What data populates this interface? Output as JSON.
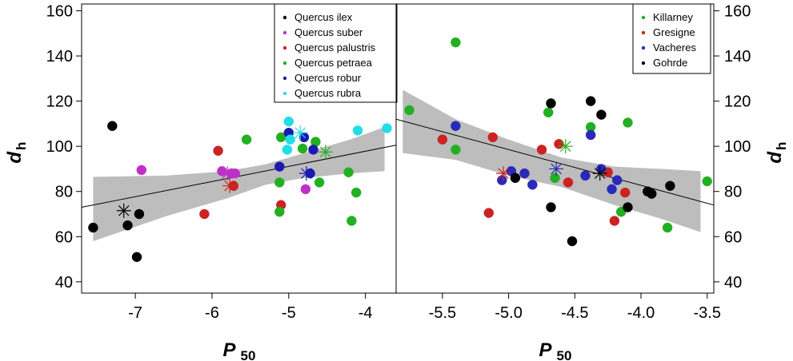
{
  "chart_data": [
    {
      "type": "scatter",
      "panel": "left",
      "xlabel_main": "P",
      "xlabel_sub": "50",
      "ylabel_main": "d",
      "ylabel_sub": "h",
      "xlim": [
        -7.7,
        -3.6
      ],
      "ylim": [
        35,
        163
      ],
      "xticks": [
        -7,
        -6,
        -5,
        -4
      ],
      "xtick_labels": [
        "-7",
        "-6",
        "-5",
        "-4"
      ],
      "yticks": [
        40,
        60,
        80,
        100,
        120,
        140,
        160
      ],
      "ytick_labels": [
        "40",
        "60",
        "80",
        "100",
        "120",
        "140",
        "160"
      ],
      "legend_position": "top-right",
      "regression": {
        "line": [
          [
            -7.7,
            73
          ],
          [
            -3.6,
            100.5
          ]
        ],
        "band_upper": [
          [
            -7.55,
            86.5
          ],
          [
            -6.6,
            87
          ],
          [
            -5.8,
            89
          ],
          [
            -5.3,
            92
          ],
          [
            -4.8,
            97
          ],
          [
            -4.2,
            103
          ],
          [
            -3.75,
            108.5
          ]
        ],
        "band_lower": [
          [
            -7.55,
            58
          ],
          [
            -6.6,
            69
          ],
          [
            -5.8,
            77
          ],
          [
            -5.3,
            83
          ],
          [
            -4.8,
            86
          ],
          [
            -4.2,
            88
          ],
          [
            -3.75,
            89
          ]
        ]
      },
      "series": [
        {
          "name": "Quercus ilex",
          "color": "#000000",
          "points": [
            [
              -7.55,
              64
            ],
            [
              -7.3,
              109
            ],
            [
              -7.1,
              65
            ],
            [
              -6.98,
              51
            ],
            [
              -6.95,
              70
            ]
          ],
          "mean": [
            -7.15,
            71.5
          ]
        },
        {
          "name": "Quercus suber",
          "color": "#c030c8",
          "points": [
            [
              -6.92,
              89.5
            ],
            [
              -5.87,
              89
            ],
            [
              -5.75,
              88
            ],
            [
              -5.7,
              88
            ],
            [
              -4.78,
              81
            ]
          ],
          "mean": [
            -5.8,
            88
          ]
        },
        {
          "name": "Quercus palustris",
          "color": "#cc2222",
          "points": [
            [
              -6.1,
              70
            ],
            [
              -5.92,
              98
            ],
            [
              -5.72,
              82.5
            ],
            [
              -5.1,
              74
            ]
          ],
          "mean": [
            -5.77,
            82.5
          ]
        },
        {
          "name": "Quercus petraea",
          "color": "#22b022",
          "points": [
            [
              -5.55,
              103
            ],
            [
              -5.12,
              84
            ],
            [
              -5.12,
              71
            ],
            [
              -5.1,
              104
            ],
            [
              -4.82,
              99
            ],
            [
              -4.65,
              102
            ],
            [
              -4.6,
              84
            ],
            [
              -4.22,
              88.5
            ],
            [
              -4.18,
              67
            ],
            [
              -4.12,
              79.5
            ]
          ],
          "mean": [
            -4.52,
            97.5
          ]
        },
        {
          "name": "Quercus robur",
          "color": "#1a1ab0",
          "points": [
            [
              -5.12,
              91
            ],
            [
              -5.0,
              106
            ],
            [
              -4.8,
              104
            ],
            [
              -4.72,
              88
            ],
            [
              -4.68,
              98.5
            ]
          ],
          "mean": [
            -4.77,
            88
          ]
        },
        {
          "name": "Quercus rubra",
          "color": "#22dde8",
          "points": [
            [
              -5.0,
              111
            ],
            [
              -5.02,
              98.5
            ],
            [
              -4.98,
              103
            ],
            [
              -4.1,
              107
            ],
            [
              -3.72,
              108
            ]
          ],
          "mean": [
            -4.85,
            106
          ]
        }
      ]
    },
    {
      "type": "scatter",
      "panel": "right",
      "xlabel_main": "P",
      "xlabel_sub": "50",
      "ylabel_main": "d",
      "ylabel_sub": "h",
      "xlim": [
        -5.85,
        -3.45
      ],
      "ylim": [
        35,
        163
      ],
      "xticks": [
        -5.5,
        -5.0,
        -4.5,
        -4.0,
        -3.5
      ],
      "xtick_labels": [
        "-5.5",
        "-5.0",
        "-4.5",
        "-4.0",
        "-3.5"
      ],
      "yticks": [
        40,
        60,
        80,
        100,
        120,
        140,
        160
      ],
      "ytick_labels": [
        "40",
        "60",
        "80",
        "100",
        "120",
        "140",
        "160"
      ],
      "legend_position": "top-right",
      "regression": {
        "line": [
          [
            -5.85,
            112
          ],
          [
            -3.45,
            74
          ]
        ],
        "band_upper": [
          [
            -5.8,
            125
          ],
          [
            -5.4,
            112
          ],
          [
            -5.0,
            103
          ],
          [
            -4.6,
            95
          ],
          [
            -4.2,
            91
          ],
          [
            -3.85,
            90
          ],
          [
            -3.55,
            89
          ]
        ],
        "band_lower": [
          [
            -5.8,
            97
          ],
          [
            -5.4,
            94
          ],
          [
            -5.0,
            87
          ],
          [
            -4.6,
            82
          ],
          [
            -4.2,
            74
          ],
          [
            -3.85,
            68
          ],
          [
            -3.55,
            62
          ]
        ]
      },
      "series": [
        {
          "name": "Killarney",
          "color": "#22b022",
          "points": [
            [
              -5.75,
              116
            ],
            [
              -5.4,
              146
            ],
            [
              -5.4,
              98.5
            ],
            [
              -4.7,
              115
            ],
            [
              -4.65,
              86
            ],
            [
              -4.38,
              108.5
            ],
            [
              -4.1,
              110.5
            ],
            [
              -4.15,
              71
            ],
            [
              -3.8,
              64
            ],
            [
              -3.5,
              84.5
            ]
          ],
          "mean": [
            -4.57,
            100
          ]
        },
        {
          "name": "Gresigne",
          "color": "#cc2222",
          "points": [
            [
              -5.5,
              103
            ],
            [
              -5.15,
              70.5
            ],
            [
              -5.12,
              104
            ],
            [
              -4.75,
              98.5
            ],
            [
              -4.62,
              101
            ],
            [
              -4.55,
              84
            ],
            [
              -4.25,
              88.5
            ],
            [
              -4.2,
              67
            ],
            [
              -4.12,
              79.5
            ]
          ],
          "mean": [
            -5.04,
            88
          ]
        },
        {
          "name": "Vacheres",
          "color": "#2a2ab8",
          "points": [
            [
              -5.4,
              109
            ],
            [
              -5.05,
              85
            ],
            [
              -4.98,
              89
            ],
            [
              -4.88,
              88
            ],
            [
              -4.82,
              83
            ],
            [
              -4.42,
              87
            ],
            [
              -4.38,
              105
            ],
            [
              -4.3,
              90
            ],
            [
              -4.22,
              81
            ],
            [
              -4.18,
              85
            ]
          ],
          "mean": [
            -4.64,
            90
          ]
        },
        {
          "name": "Gohrde",
          "color": "#000000",
          "points": [
            [
              -4.95,
              86
            ],
            [
              -4.68,
              119
            ],
            [
              -4.68,
              73
            ],
            [
              -4.52,
              58
            ],
            [
              -4.38,
              120
            ],
            [
              -4.3,
              114
            ],
            [
              -4.1,
              73
            ],
            [
              -3.95,
              80
            ],
            [
              -3.92,
              79
            ],
            [
              -3.78,
              82.5
            ]
          ],
          "mean": [
            -4.31,
            88
          ]
        }
      ]
    }
  ]
}
